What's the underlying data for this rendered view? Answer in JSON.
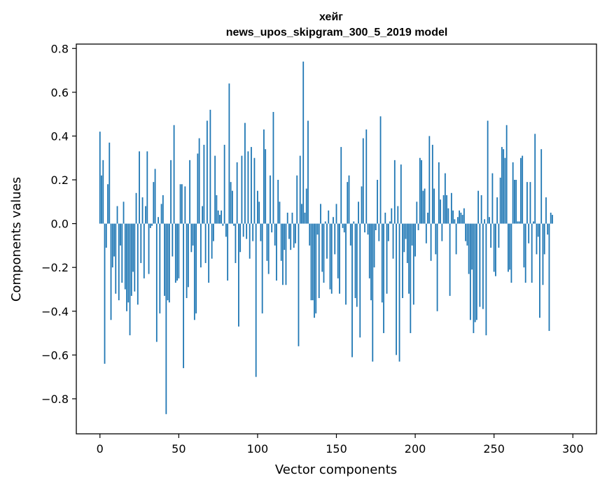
{
  "chart_data": {
    "type": "bar",
    "title": "хейг",
    "subtitle": "news_upos_skipgram_300_5_2019 model",
    "xlabel": "Vector components",
    "ylabel": "Components values",
    "xlim": [
      -15,
      315
    ],
    "ylim": [
      -0.96,
      0.82
    ],
    "xticks": [
      0,
      50,
      100,
      150,
      200,
      250,
      300
    ],
    "yticks": [
      -0.8,
      -0.6,
      -0.4,
      -0.2,
      0.0,
      0.2,
      0.4,
      0.6,
      0.8
    ],
    "ytick_labels": [
      "−0.8",
      "−0.6",
      "−0.4",
      "−0.2",
      "0.0",
      "0.2",
      "0.4",
      "0.6",
      "0.8"
    ],
    "grid": false,
    "color": "#1f77b4",
    "series": [
      {
        "values": [
          0.42,
          0.22,
          0.29,
          -0.64,
          -0.11,
          0.18,
          0.37,
          -0.44,
          -0.2,
          -0.15,
          -0.32,
          0.08,
          -0.35,
          -0.1,
          -0.27,
          0.1,
          -0.3,
          -0.4,
          -0.36,
          -0.51,
          -0.33,
          -0.22,
          -0.31,
          0.14,
          -0.37,
          0.33,
          -0.18,
          0.12,
          -0.25,
          0.08,
          0.33,
          -0.23,
          -0.02,
          -0.01,
          0.19,
          0.25,
          -0.54,
          0.03,
          -0.41,
          0.09,
          0.13,
          -0.33,
          -0.87,
          -0.35,
          -0.36,
          0.29,
          -0.15,
          0.45,
          -0.27,
          -0.26,
          -0.25,
          0.18,
          0.18,
          -0.66,
          0.17,
          -0.34,
          -0.29,
          0.29,
          -0.13,
          -0.1,
          -0.44,
          -0.41,
          0.32,
          0.39,
          -0.2,
          0.08,
          0.36,
          -0.18,
          0.47,
          -0.27,
          0.52,
          -0.16,
          -0.08,
          0.31,
          0.13,
          0.06,
          0.04,
          0.06,
          -0.01,
          0.36,
          -0.06,
          -0.26,
          0.64,
          0.19,
          0.15,
          -0.01,
          -0.18,
          0.28,
          -0.47,
          -0.13,
          0.31,
          -0.06,
          0.46,
          -0.07,
          0.33,
          -0.16,
          0.35,
          -0.08,
          0.3,
          -0.7,
          0.15,
          0.1,
          -0.08,
          -0.41,
          0.43,
          0.34,
          -0.17,
          -0.23,
          0.22,
          -0.04,
          0.51,
          -0.1,
          -0.26,
          0.2,
          0.1,
          -0.17,
          -0.28,
          -0.12,
          -0.28,
          0.05,
          -0.07,
          -0.12,
          0.05,
          -0.11,
          -0.09,
          0.22,
          -0.56,
          0.31,
          0.09,
          0.74,
          0.05,
          0.16,
          0.47,
          -0.1,
          -0.35,
          -0.35,
          -0.43,
          -0.41,
          -0.05,
          -0.34,
          0.09,
          -0.22,
          -0.27,
          0.01,
          -0.16,
          0.06,
          -0.3,
          -0.32,
          0.03,
          -0.14,
          0.09,
          -0.25,
          -0.32,
          0.35,
          -0.02,
          -0.04,
          -0.37,
          0.19,
          0.22,
          -0.1,
          -0.61,
          0.01,
          -0.34,
          -0.38,
          0.1,
          -0.52,
          0.17,
          0.39,
          -0.04,
          0.43,
          -0.05,
          -0.25,
          -0.35,
          -0.63,
          -0.2,
          -0.03,
          0.2,
          -0.08,
          0.49,
          -0.36,
          -0.5,
          0.05,
          -0.32,
          -0.08,
          0.01,
          0.07,
          -0.16,
          0.29,
          -0.6,
          0.08,
          -0.63,
          0.27,
          -0.34,
          -0.13,
          -0.07,
          -0.18,
          -0.32,
          -0.5,
          -0.1,
          -0.37,
          -0.15,
          0.1,
          -0.03,
          0.3,
          0.29,
          0.15,
          0.16,
          -0.09,
          0.05,
          0.4,
          -0.17,
          0.36,
          0.16,
          -0.14,
          -0.4,
          0.28,
          0.11,
          -0.08,
          0.13,
          0.23,
          0.13,
          0.07,
          -0.33,
          0.14,
          0.06,
          0.02,
          -0.14,
          0.03,
          0.06,
          0.05,
          0.04,
          0.07,
          -0.08,
          -0.1,
          -0.23,
          -0.44,
          -0.21,
          -0.5,
          -0.45,
          -0.44,
          0.15,
          -0.38,
          0.13,
          -0.39,
          0.02,
          -0.51,
          0.47,
          0.03,
          -0.11,
          0.23,
          -0.22,
          -0.24,
          0.12,
          -0.11,
          0.21,
          0.35,
          0.34,
          0.3,
          0.45,
          -0.22,
          -0.21,
          -0.27,
          0.28,
          0.2,
          0.2,
          0.01,
          0.01,
          0.3,
          0.31,
          -0.2,
          -0.27,
          0.19,
          -0.09,
          0.19,
          -0.27,
          0.01,
          0.41,
          -0.14,
          -0.06,
          -0.43,
          0.34,
          -0.28,
          -0.14,
          0.12,
          -0.05,
          -0.49,
          0.05,
          0.04
        ]
      }
    ]
  }
}
